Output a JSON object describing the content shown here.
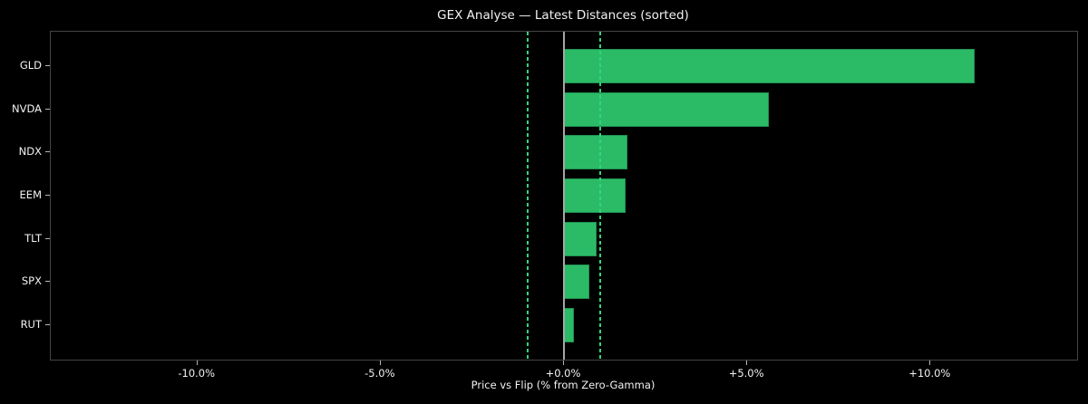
{
  "chart_data": {
    "type": "bar",
    "orientation": "horizontal",
    "title": "GEX Analyse — Latest Distances (sorted)",
    "xlabel": "Price vs Flip (% from Zero-Gamma)",
    "ylabel": "",
    "categories": [
      "GLD",
      "NVDA",
      "NDX",
      "EEM",
      "TLT",
      "SPX",
      "RUT"
    ],
    "values": [
      11.2,
      5.6,
      1.72,
      1.68,
      0.89,
      0.7,
      0.26
    ],
    "value_unit": "percent",
    "xlim": [
      -14,
      14
    ],
    "xticks": [
      {
        "value": -10,
        "label": "-10.0%"
      },
      {
        "value": -5,
        "label": "-5.0%"
      },
      {
        "value": 0,
        "label": "+0.0%"
      },
      {
        "value": 5,
        "label": "+5.0%"
      },
      {
        "value": 10,
        "label": "+10.0%"
      }
    ],
    "reference_lines": [
      {
        "value": -1,
        "style": "dashed"
      },
      {
        "value": 1,
        "style": "dashed"
      },
      {
        "value": 0,
        "style": "solid"
      }
    ],
    "grid": false,
    "legend": "none"
  },
  "colors": {
    "background": "#000000",
    "plot_background": "#000000",
    "bar_fill": "#2bbb66",
    "bar_edge": "#209253",
    "reference_dashed": "#2fd57d",
    "reference_solid": "#a6a6a6",
    "spine": "#454545",
    "tick": "#b5b5b5",
    "text": "#f2f2f2"
  }
}
